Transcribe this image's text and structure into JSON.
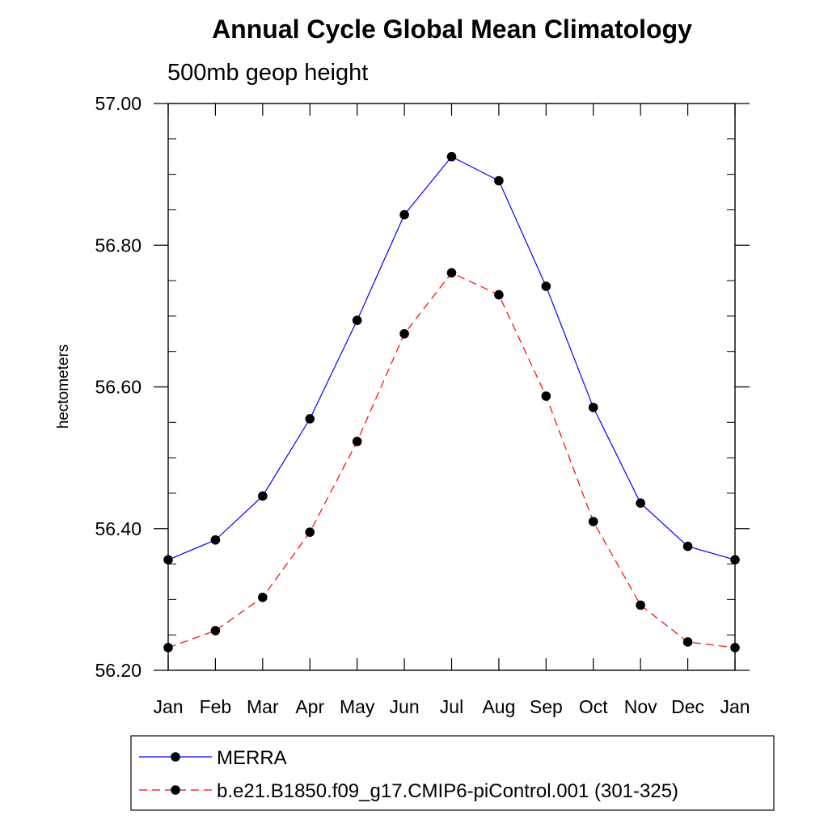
{
  "chart_data": {
    "type": "line",
    "title": "Annual Cycle Global Mean Climatology",
    "subtitle": "500mb geop height",
    "xlabel": "",
    "ylabel": "hectometers",
    "categories": [
      "Jan",
      "Feb",
      "Mar",
      "Apr",
      "May",
      "Jun",
      "Jul",
      "Aug",
      "Sep",
      "Oct",
      "Nov",
      "Dec",
      "Jan"
    ],
    "y_ticks": [
      "56.20",
      "56.40",
      "56.60",
      "56.80",
      "57.00"
    ],
    "ylim": [
      56.2,
      57.0
    ],
    "grid": false,
    "legend_position": "bottom",
    "series": [
      {
        "name": "MERRA",
        "color": "#0000ff",
        "line_style": "solid",
        "marker": "filled-circle",
        "values": [
          56.356,
          56.384,
          56.446,
          56.555,
          56.694,
          56.843,
          56.925,
          56.891,
          56.742,
          56.571,
          56.436,
          56.375,
          56.356
        ]
      },
      {
        "name": "b.e21.B1850.f09_g17.CMIP6-piControl.001 (301-325)",
        "color": "#ff0000",
        "line_style": "dashed",
        "marker": "filled-circle",
        "values": [
          56.232,
          56.256,
          56.303,
          56.395,
          56.523,
          56.675,
          56.761,
          56.73,
          56.587,
          56.41,
          56.292,
          56.24,
          56.232
        ]
      }
    ]
  }
}
